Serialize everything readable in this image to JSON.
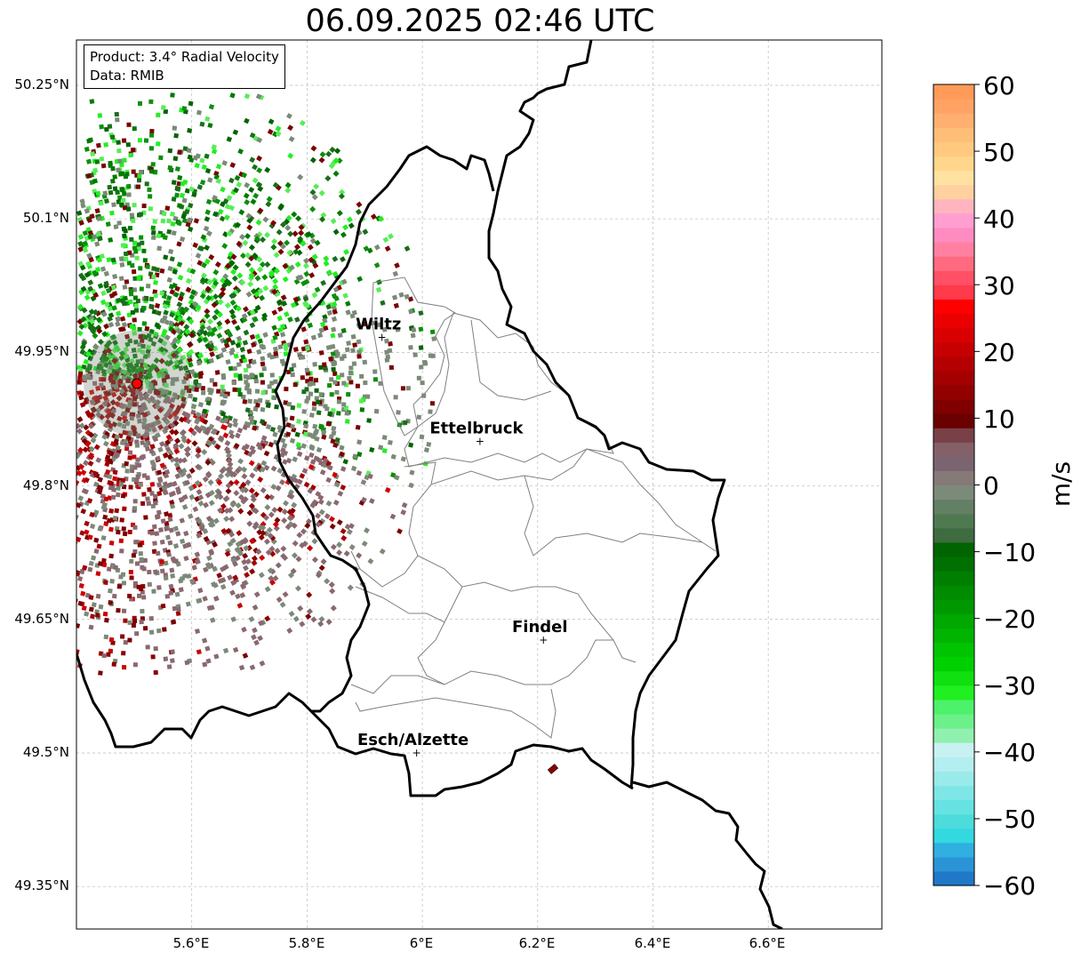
{
  "title": "06.09.2025 02:46 UTC",
  "info": {
    "product": "Product: 3.4° Radial Velocity",
    "source": "Data: RMIB"
  },
  "lat_labels": [
    "50.25°N",
    "50.1°N",
    "49.95°N",
    "49.8°N",
    "49.65°N",
    "49.5°N",
    "49.35°N"
  ],
  "lon_labels": [
    "5.6°E",
    "5.8°E",
    "6°E",
    "6.2°E",
    "6.4°E",
    "6.6°E"
  ],
  "cities": [
    {
      "name": "Wiltz",
      "lon": 5.93,
      "lat": 49.967
    },
    {
      "name": "Ettelbruck",
      "lon": 6.1,
      "lat": 49.85
    },
    {
      "name": "Findel",
      "lon": 6.21,
      "lat": 49.627
    },
    {
      "name": "Esch/Alzette",
      "lon": 5.99,
      "lat": 49.5
    }
  ],
  "radar_site": {
    "lon": 5.505,
    "lat": 49.915,
    "color": "#ff0000"
  },
  "colorbar": {
    "unit": "m/s",
    "min": -60,
    "max": 60,
    "ticks": [
      "60",
      "50",
      "40",
      "30",
      "20",
      "10",
      "0",
      "−10",
      "−20",
      "−30",
      "−40",
      "−50",
      "−60"
    ]
  },
  "colors": {
    "border": "#000000",
    "cantons": "#808080",
    "grid": "#bbbbbb",
    "inbound_dark": "#006400",
    "inbound_light": "#22ee22",
    "zero": "#7b8a78",
    "outbound_dark": "#7a0000",
    "outbound_pink": "#8a6870"
  }
}
